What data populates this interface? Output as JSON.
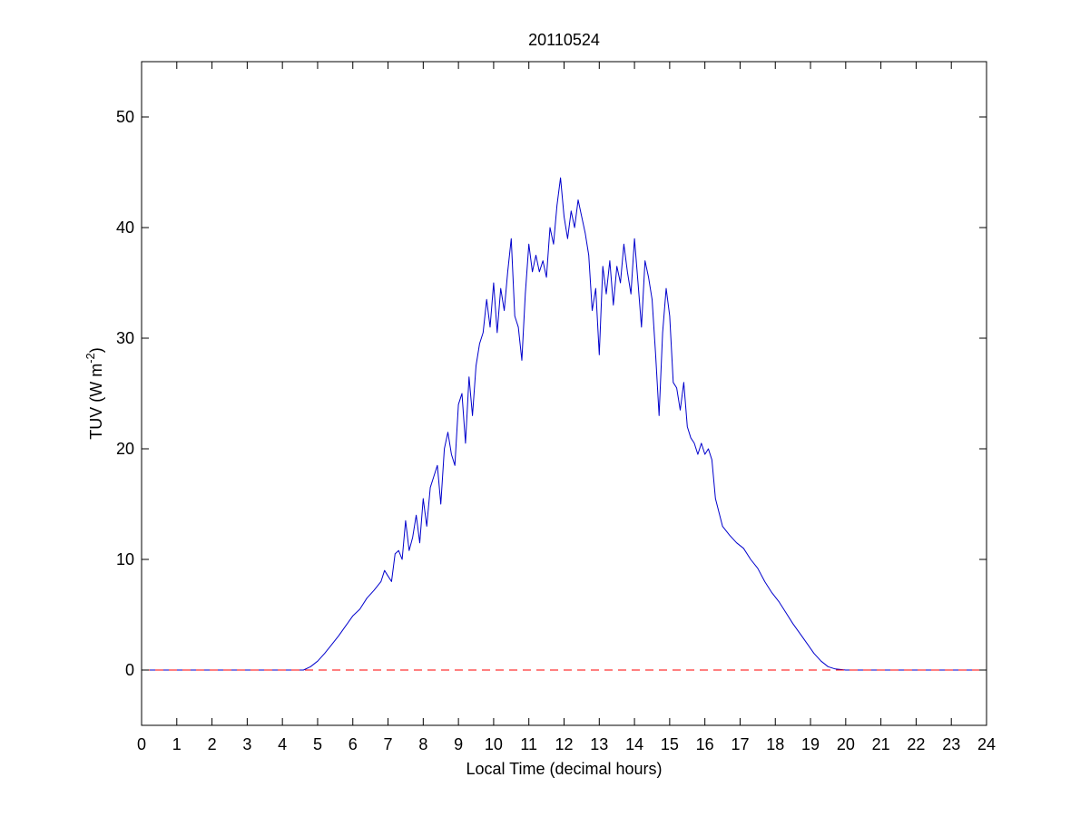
{
  "chart_data": {
    "type": "line",
    "title": "20110524",
    "xlabel": "Local Time (decimal hours)",
    "ylabel": "TUV (W m",
    "ylabel_exponent": "-2",
    "ylabel_close": ")",
    "xlim": [
      0,
      24
    ],
    "ylim": [
      -5,
      55
    ],
    "xticks": [
      0,
      1,
      2,
      3,
      4,
      5,
      6,
      7,
      8,
      9,
      10,
      11,
      12,
      13,
      14,
      15,
      16,
      17,
      18,
      19,
      20,
      21,
      22,
      23,
      24
    ],
    "yticks": [
      0,
      10,
      20,
      30,
      40,
      50
    ],
    "grid": false,
    "legend": "none",
    "series": [
      {
        "color": "#0000cc",
        "style": "solid",
        "x": [
          0,
          1,
          2,
          3,
          4,
          4.6,
          4.8,
          5.0,
          5.2,
          5.4,
          5.6,
          5.8,
          6.0,
          6.2,
          6.4,
          6.6,
          6.8,
          6.9,
          7.0,
          7.1,
          7.2,
          7.3,
          7.4,
          7.5,
          7.6,
          7.7,
          7.8,
          7.9,
          8.0,
          8.1,
          8.2,
          8.3,
          8.4,
          8.5,
          8.6,
          8.7,
          8.8,
          8.9,
          9.0,
          9.1,
          9.2,
          9.3,
          9.4,
          9.5,
          9.6,
          9.7,
          9.8,
          9.9,
          10.0,
          10.1,
          10.2,
          10.3,
          10.4,
          10.5,
          10.6,
          10.7,
          10.8,
          10.9,
          11.0,
          11.1,
          11.2,
          11.3,
          11.4,
          11.5,
          11.6,
          11.7,
          11.8,
          11.9,
          12.0,
          12.1,
          12.2,
          12.3,
          12.4,
          12.5,
          12.6,
          12.7,
          12.8,
          12.9,
          13.0,
          13.1,
          13.2,
          13.3,
          13.4,
          13.5,
          13.6,
          13.7,
          13.8,
          13.9,
          14.0,
          14.1,
          14.2,
          14.3,
          14.4,
          14.5,
          14.6,
          14.7,
          14.8,
          14.9,
          15.0,
          15.1,
          15.2,
          15.3,
          15.4,
          15.5,
          15.6,
          15.7,
          15.8,
          15.9,
          16.0,
          16.1,
          16.2,
          16.3,
          16.5,
          16.7,
          16.9,
          17.1,
          17.3,
          17.5,
          17.7,
          17.9,
          18.1,
          18.3,
          18.5,
          18.7,
          18.9,
          19.1,
          19.3,
          19.5,
          19.7,
          20,
          21,
          22,
          23,
          24
        ],
        "y": [
          0,
          0,
          0,
          0,
          0,
          0,
          0.3,
          0.8,
          1.5,
          2.3,
          3.1,
          4.0,
          4.9,
          5.5,
          6.5,
          7.2,
          8.0,
          9.0,
          8.5,
          8.0,
          10.5,
          10.8,
          10.0,
          13.5,
          10.8,
          12.0,
          14.0,
          11.5,
          15.5,
          13.0,
          16.5,
          17.5,
          18.5,
          15.0,
          20.0,
          21.5,
          19.5,
          18.5,
          24.0,
          25.0,
          20.5,
          26.5,
          23.0,
          27.5,
          29.5,
          30.5,
          33.5,
          31.0,
          35.0,
          30.5,
          34.5,
          32.5,
          36.0,
          39.0,
          32.0,
          31.0,
          28.0,
          34.0,
          38.5,
          36.0,
          37.5,
          36.0,
          37.0,
          35.5,
          40.0,
          38.5,
          42.0,
          44.5,
          41.0,
          39.0,
          41.5,
          40.0,
          42.5,
          41.0,
          39.5,
          37.5,
          32.5,
          34.5,
          28.5,
          36.5,
          34.0,
          37.0,
          33.0,
          36.5,
          35.0,
          38.5,
          36.0,
          34.0,
          39.0,
          35.0,
          31.0,
          37.0,
          35.5,
          33.5,
          28.5,
          23.0,
          30.5,
          34.5,
          32.0,
          26.0,
          25.5,
          23.5,
          26.0,
          22.0,
          21.0,
          20.5,
          19.5,
          20.5,
          19.5,
          20.0,
          19.0,
          15.5,
          13.0,
          12.2,
          11.5,
          11.0,
          10.0,
          9.2,
          8.0,
          7.0,
          6.2,
          5.2,
          4.2,
          3.3,
          2.4,
          1.5,
          0.8,
          0.3,
          0.1,
          0,
          0,
          0,
          0,
          0
        ]
      },
      {
        "color": "#ff0000",
        "style": "dashed",
        "x": [
          0,
          24
        ],
        "y": [
          0,
          0
        ]
      }
    ]
  }
}
